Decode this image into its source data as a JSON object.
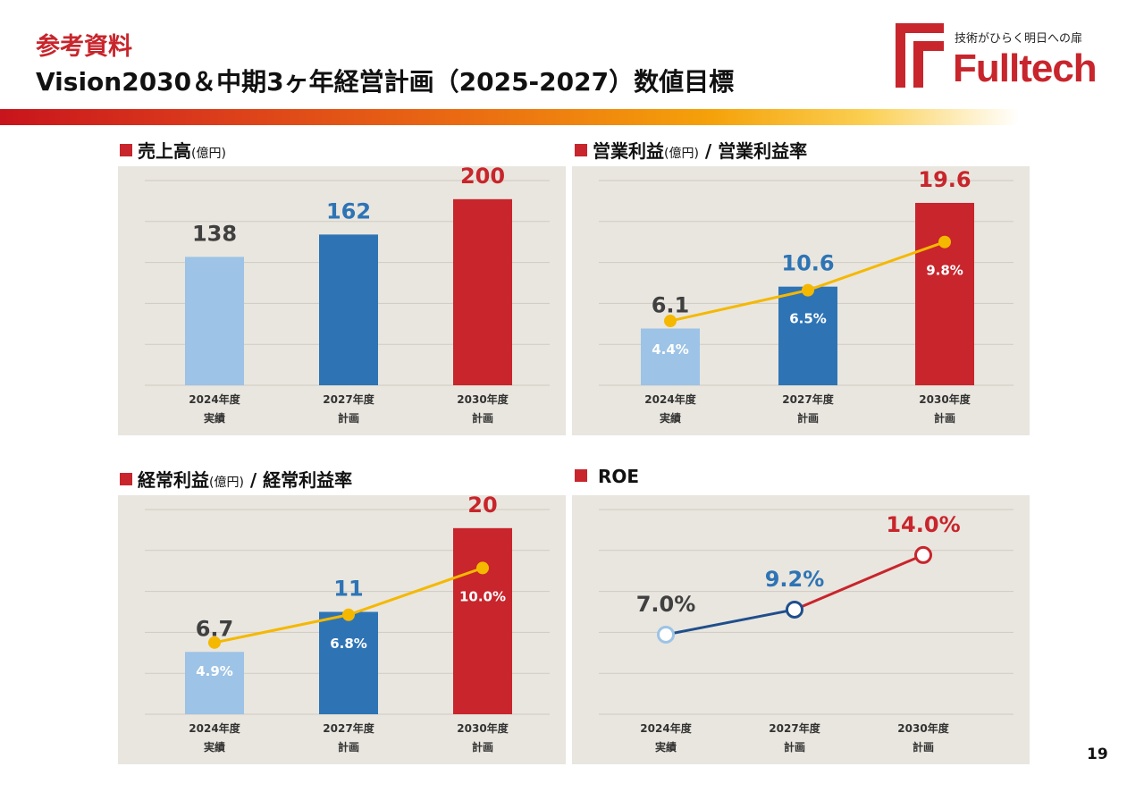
{
  "header": {
    "subtitle": "参考資料",
    "title": "Vision2030＆中期3ヶ年経営計画（2025-2027）数値目標"
  },
  "logo": {
    "tagline": "技術がひらく明日への扉",
    "name": "Fulltech"
  },
  "page_number": "19",
  "colors": {
    "accent_red": "#c8252c",
    "light_blue": "#9dc3e6",
    "mid_blue": "#2e74b5",
    "red_bar": "#c8252c",
    "rate_line": "#f5b800",
    "roe_line_blue": "#1f4e8c",
    "panel_bg": "#e9e6df"
  },
  "sections": {
    "sales": {
      "title": "売上高",
      "unit": "(億円)"
    },
    "op": {
      "title": "営業利益",
      "unit": "(億円)",
      "suffix": " / 営業利益率"
    },
    "ord": {
      "title": "経常利益",
      "unit": "(億円)",
      "suffix": " / 経常利益率"
    },
    "roe": {
      "title": "ROE"
    }
  },
  "chart_data": [
    {
      "id": "sales",
      "type": "bar",
      "categories": [
        [
          "2024年度",
          "実績"
        ],
        [
          "2027年度",
          "計画"
        ],
        [
          "2030年度",
          "計画"
        ]
      ],
      "values": [
        138,
        162,
        200
      ],
      "labels": [
        "138",
        "162",
        "200"
      ],
      "ylim": [
        0,
        220
      ],
      "grid": true
    },
    {
      "id": "op",
      "type": "bar",
      "categories": [
        [
          "2024年度",
          "実績"
        ],
        [
          "2027年度",
          "計画"
        ],
        [
          "2030年度",
          "計画"
        ]
      ],
      "values": [
        6.1,
        10.6,
        19.6
      ],
      "labels": [
        "6.1",
        "10.6",
        "19.6"
      ],
      "ylim": [
        0,
        22
      ],
      "grid": true,
      "rates": [
        4.4,
        6.5,
        9.8
      ],
      "rate_labels": [
        "4.4%",
        "6.5%",
        "9.8%"
      ],
      "rate_ylim": [
        0,
        14
      ]
    },
    {
      "id": "ord",
      "type": "bar",
      "categories": [
        [
          "2024年度",
          "実績"
        ],
        [
          "2027年度",
          "計画"
        ],
        [
          "2030年度",
          "計画"
        ]
      ],
      "values": [
        6.7,
        11,
        20
      ],
      "labels": [
        "6.7",
        "11",
        "20"
      ],
      "ylim": [
        0,
        22
      ],
      "grid": true,
      "rates": [
        4.9,
        6.8,
        10.0
      ],
      "rate_labels": [
        "4.9%",
        "6.8%",
        "10.0%"
      ],
      "rate_ylim": [
        0,
        14
      ]
    },
    {
      "id": "roe",
      "type": "line",
      "categories": [
        [
          "2024年度",
          "実績"
        ],
        [
          "2027年度",
          "計画"
        ],
        [
          "2030年度",
          "計画"
        ]
      ],
      "values": [
        7.0,
        9.2,
        14.0
      ],
      "labels": [
        "7.0%",
        "9.2%",
        "14.0%"
      ],
      "ylim": [
        0,
        18
      ],
      "grid": true
    }
  ]
}
